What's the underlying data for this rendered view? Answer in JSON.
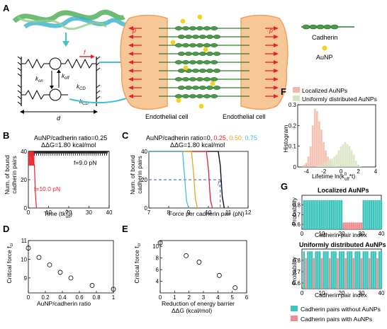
{
  "panels": {
    "A": {
      "label": "A",
      "f_label": "f",
      "k_on": "k",
      "k_on_sub": "on",
      "k_off": "k",
      "k_off_sub": "off",
      "k_cd": "k",
      "k_cd_sub": "CD",
      "k_cd2": "k",
      "k_cd2_sub": "CD",
      "d_label": "d",
      "p_left": "p",
      "p_right": "p",
      "cell_left": "Endothelial cell",
      "cell_right": "Endothelial cell",
      "legend_cadherin": "Cadherin",
      "legend_aunp": "AuNP"
    },
    "B": {
      "label": "B",
      "title1": "AuNP/cadherin ratio=0.25",
      "title2": "ΔΔG=1.80 kcal/mol",
      "ylabel1": "Num. of bound",
      "ylabel2": "cadherin pairs",
      "xlabel": "Time (tk",
      "xlabel_sup": "0",
      "xlabel_sub": "off",
      "xlabel_end": ")",
      "ann_black": "f=9.0 pN",
      "ann_red": "f=10.0 pN"
    },
    "C": {
      "label": "C",
      "title_prefix": "AuNP/cadherin ratio=0,",
      "title_vals": [
        "0.25,",
        "0.50,",
        "0.75"
      ],
      "title2": "ΔΔG=1.80 kcal/mol",
      "ylabel1": "Num. of bound",
      "ylabel2": "cadherin pairs",
      "xlabel": "Force per cadherin pair (pN)",
      "fcr": "f",
      "fcr_sub": "cr"
    },
    "D": {
      "label": "D",
      "ylabel": "Critical force f",
      "ylabel_sub": "cr",
      "xlabel": "AuNP/cadherin ratio"
    },
    "E": {
      "label": "E",
      "ylabel": "Critical force f",
      "ylabel_sub": "cr",
      "xlabel1": "Reduction of energy barrier",
      "xlabel2": "ΔΔG (kcal/mol)"
    },
    "F": {
      "label": "F",
      "ylabel": "Histogram",
      "xlabel": "Lifetime ln(k",
      "xlabel_sup": "0",
      "xlabel_sub": "off",
      "xlabel_end": "*t)",
      "legend": [
        "Localized AuNPs",
        "Uniformly distributed AuNPs"
      ]
    },
    "G": {
      "label": "G",
      "title_top": "Localized AuNPs",
      "title_bottom": "Uniformly distributed AuNPs",
      "ylabel": "Probability",
      "xlabel": "Cadherin pair index",
      "legend": [
        "Cadherin pairs without AuNPs",
        "Cadherin pairs with AuNPs"
      ]
    }
  },
  "colors": {
    "red": "#e8202a",
    "orange": "#f0a020",
    "cyan": "#40c0e0",
    "teal": "#3cc4bd",
    "pink": "#f08c8c",
    "hist_pink": "#f4b8a8",
    "hist_green": "#d6e4c0",
    "cell": "#f7c797",
    "cadherin": "#2e7d32",
    "aunp": "#f5d31c",
    "dashed_blue": "#3a5ab0"
  },
  "chart_data": [
    {
      "panel": "B",
      "type": "line",
      "title": "AuNP/cadherin ratio=0.25  ΔΔG=1.80 kcal/mol",
      "xlabel": "Time (tk0off)",
      "ylabel": "Num. of bound cadherin pairs",
      "xlim": [
        0,
        40
      ],
      "ylim": [
        0,
        40
      ],
      "xticks": [
        0,
        10,
        20,
        30,
        40
      ],
      "yticks": [
        0,
        20,
        40
      ],
      "series": [
        {
          "name": "f=9.0 pN",
          "color": "#000000",
          "x": [
            0,
            40
          ],
          "y": [
            40,
            40
          ]
        },
        {
          "name": "f=10.0 pN",
          "color": "#e8202a",
          "x": [
            0,
            1,
            2,
            3,
            3.5,
            4
          ],
          "y": [
            40,
            38,
            36,
            30,
            10,
            0
          ]
        }
      ]
    },
    {
      "panel": "C",
      "type": "line",
      "xlabel": "Force per cadherin pair (pN)",
      "ylabel": "Num. of bound cadherin pairs",
      "xlim": [
        7,
        12
      ],
      "ylim": [
        0,
        40
      ],
      "xticks": [
        7,
        8,
        9,
        10,
        11,
        12
      ],
      "yticks": [
        0,
        20,
        40
      ],
      "series": [
        {
          "name": "0",
          "color": "#000000",
          "x": [
            7,
            10.5,
            10.6,
            10.7,
            10.8
          ],
          "y": [
            40,
            40,
            30,
            8,
            0
          ]
        },
        {
          "name": "0.25",
          "color": "#e8202a",
          "x": [
            7,
            9.9,
            10.0,
            10.1,
            10.2
          ],
          "y": [
            40,
            40,
            28,
            6,
            0
          ]
        },
        {
          "name": "0.50",
          "color": "#f0a020",
          "x": [
            7,
            9.15,
            9.25,
            9.35,
            9.45
          ],
          "y": [
            40,
            40,
            25,
            6,
            0
          ]
        },
        {
          "name": "0.75",
          "color": "#40c0e0",
          "x": [
            7,
            8.7,
            8.8,
            8.9,
            9.0
          ],
          "y": [
            40,
            40,
            22,
            5,
            0
          ]
        }
      ],
      "reference_line_y": 20
    },
    {
      "panel": "D",
      "type": "scatter",
      "xlabel": "AuNP/cadherin ratio",
      "ylabel": "Critical force fcr",
      "xlim": [
        0,
        1
      ],
      "ylim": [
        8.2,
        11
      ],
      "xticks": [
        0,
        0.2,
        0.4,
        0.6,
        0.8,
        1.0
      ],
      "yticks": [
        9,
        10,
        11
      ],
      "x": [
        0,
        0.125,
        0.25,
        0.375,
        0.5,
        0.75,
        1.0
      ],
      "y": [
        10.6,
        10.1,
        9.7,
        9.3,
        9.0,
        8.6,
        8.4
      ]
    },
    {
      "panel": "E",
      "type": "scatter",
      "xlabel": "Reduction of energy barrier ΔΔG (kcal/mol)",
      "ylabel": "Critical force fcr",
      "xlim": [
        0,
        6
      ],
      "ylim": [
        2,
        11
      ],
      "xticks": [
        0,
        1,
        2,
        3,
        4,
        5,
        6
      ],
      "yticks": [
        4,
        6,
        8,
        10
      ],
      "x": [
        0,
        1.8,
        2.7,
        4.1,
        5.2
      ],
      "y": [
        10.6,
        8.4,
        7.3,
        5.0,
        2.9
      ]
    },
    {
      "panel": "F",
      "type": "bar",
      "xlabel": "Lifetime ln(k0off*t)",
      "ylabel": "Histogram",
      "xlim": [
        -5,
        4
      ],
      "ylim": [
        0,
        0.3
      ],
      "xticks": [
        -4,
        -2,
        0,
        2,
        4
      ],
      "yticks": [
        0,
        0.1,
        0.2,
        0.3
      ],
      "series": [
        {
          "name": "Localized AuNPs",
          "color": "#f4b8a8",
          "x": [
            -4.25,
            -4.0,
            -3.75,
            -3.5,
            -3.25,
            -3.0,
            -2.75,
            -2.5,
            -2.25,
            -2.0,
            -1.75,
            -1.5,
            -1.25,
            -1.0,
            -0.75
          ],
          "values": [
            0.01,
            0.02,
            0.05,
            0.1,
            0.2,
            0.28,
            0.27,
            0.22,
            0.18,
            0.12,
            0.08,
            0.05,
            0.03,
            0.01,
            0.005
          ]
        },
        {
          "name": "Uniformly distributed AuNPs",
          "color": "#d6e4c0",
          "x": [
            -2.75,
            -2.5,
            -2.25,
            -2.0,
            -1.75,
            -1.5,
            -1.25,
            -1.0,
            -0.75,
            -0.5,
            -0.25,
            0.0,
            0.25,
            0.5,
            0.75,
            1.0,
            1.25,
            1.5,
            1.75,
            2.0,
            2.25
          ],
          "values": [
            0.005,
            0.01,
            0.01,
            0.02,
            0.02,
            0.03,
            0.04,
            0.04,
            0.05,
            0.06,
            0.08,
            0.1,
            0.11,
            0.12,
            0.11,
            0.1,
            0.08,
            0.06,
            0.03,
            0.01,
            0.005
          ]
        }
      ]
    },
    {
      "panel": "G-top",
      "type": "bar",
      "title": "Localized AuNPs",
      "xlabel": "Cadherin pair index",
      "ylabel": "Probability",
      "xlim": [
        0,
        40
      ],
      "ylim": [
        0.55,
        0.9
      ],
      "xticks": [
        0,
        10,
        20,
        30,
        40
      ],
      "yticks": [
        0.6,
        0.7,
        0.8
      ],
      "with_aunp_indices": [
        21,
        22,
        23,
        24,
        25,
        26,
        27,
        28,
        29,
        30
      ],
      "values_without": 0.85,
      "values_with": 0.62
    },
    {
      "panel": "G-bottom",
      "type": "bar",
      "title": "Uniformly distributed AuNPs",
      "xlabel": "Cadherin pair index",
      "ylabel": "Probability",
      "xlim": [
        0,
        40
      ],
      "ylim": [
        0.55,
        0.9
      ],
      "xticks": [
        0,
        10,
        20,
        30,
        40
      ],
      "yticks": [
        0.6,
        0.7,
        0.8
      ],
      "pattern": "every 4th pair has AuNP",
      "values_without": 0.88,
      "values_with": 0.82
    }
  ]
}
